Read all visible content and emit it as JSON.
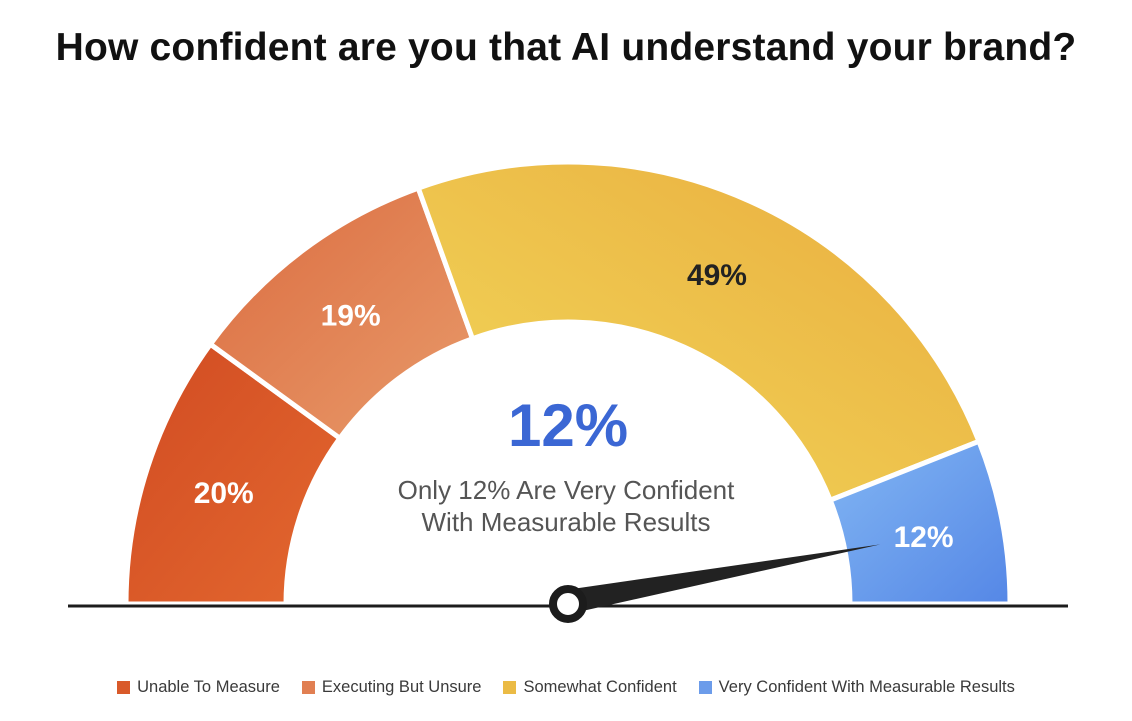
{
  "title": "How confident are you that AI understand your brand?",
  "chart_data": {
    "type": "gauge",
    "title": "How confident are you that AI understand your brand?",
    "segments": [
      {
        "name": "Unable To Measure",
        "value": 20,
        "label": "20%",
        "color": "#D95A2A"
      },
      {
        "name": "Executing But Unsure",
        "value": 19,
        "label": "19%",
        "color": "#E17F52"
      },
      {
        "name": "Somewhat Confident",
        "value": 49,
        "label": "49%",
        "color": "#EBBB45"
      },
      {
        "name": "Very Confident With Measurable Results",
        "value": 12,
        "label": "12%",
        "color": "#6C9CEA"
      }
    ],
    "needle_value": 12,
    "center": {
      "value_label": "12%",
      "caption_line1": "Only 12% Are Very Confident",
      "caption_line2": "With Measurable Results"
    },
    "legend_position": "bottom"
  }
}
